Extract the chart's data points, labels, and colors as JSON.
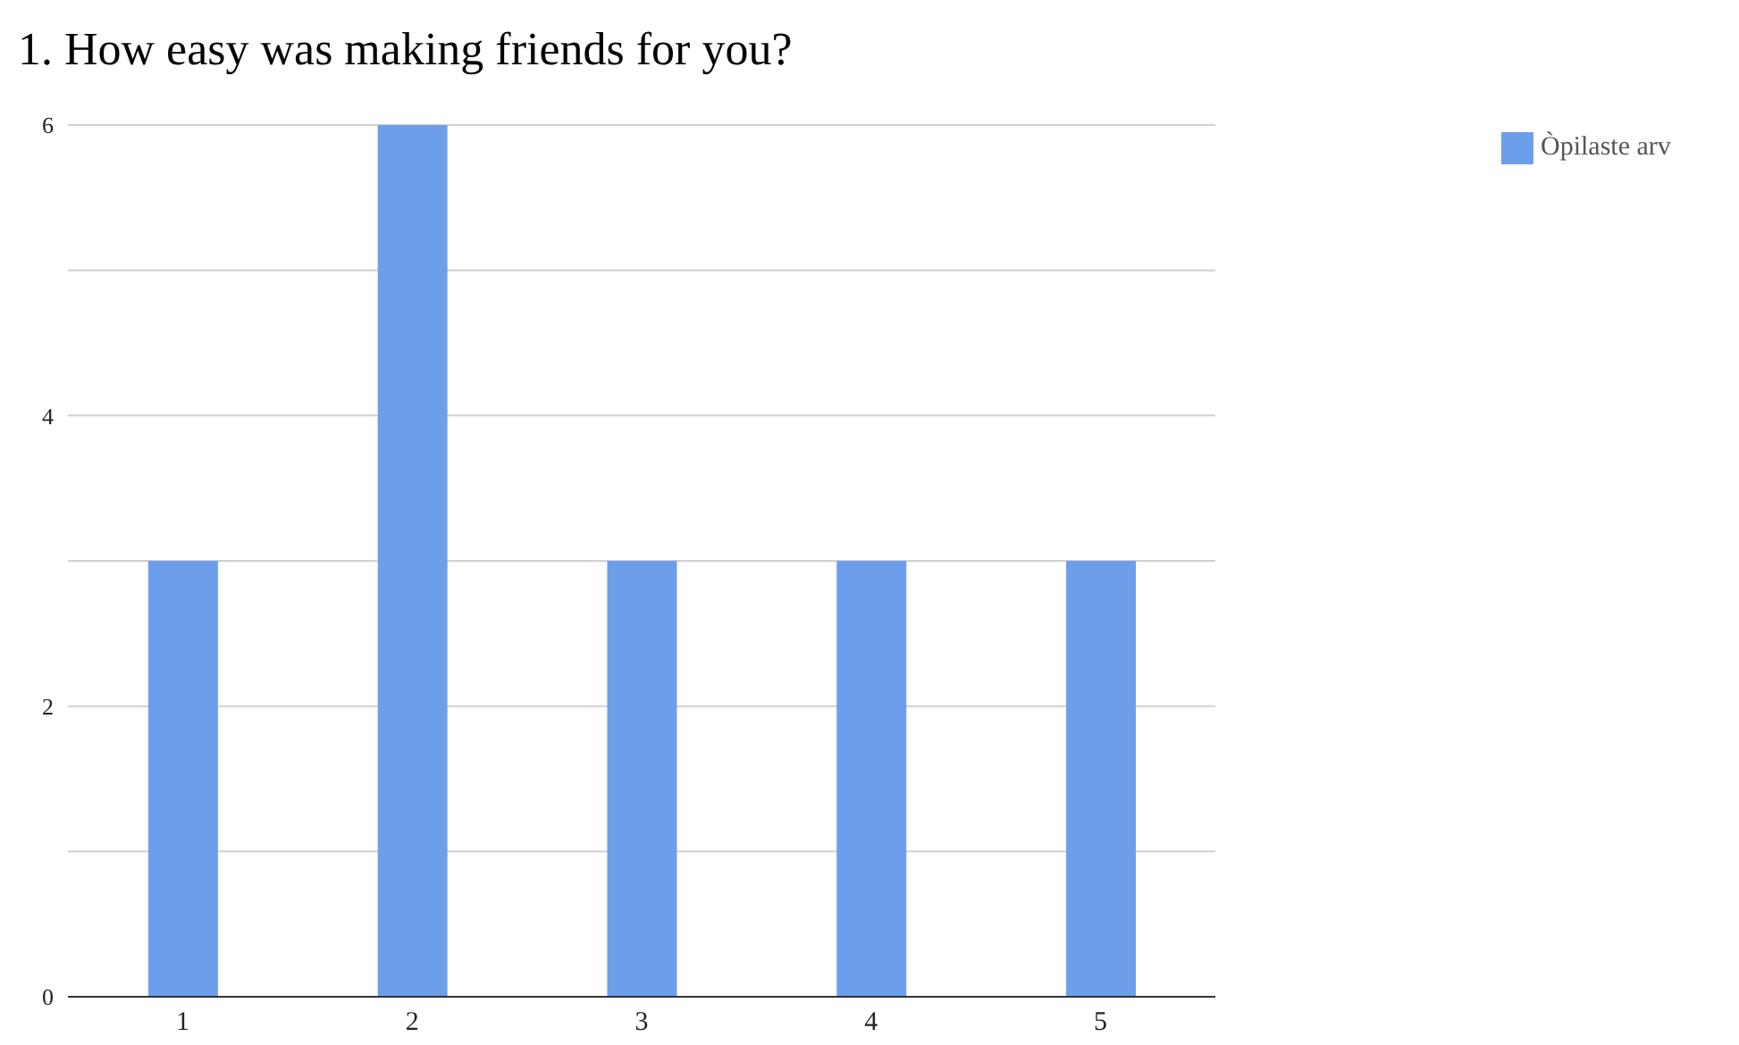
{
  "chart_data": {
    "type": "bar",
    "title": "1. How easy was making friends for you?",
    "categories": [
      "1",
      "2",
      "3",
      "4",
      "5"
    ],
    "series": [
      {
        "name": "Òpilaste arv",
        "color": "#6d9eeb",
        "values": [
          3,
          6,
          3,
          3,
          3
        ]
      }
    ],
    "ylim": [
      0,
      6
    ],
    "yticks": [
      0,
      {
        "value": 1,
        "label": null
      },
      2,
      {
        "value": 3,
        "label": null
      },
      4,
      {
        "value": 5,
        "label": null
      },
      6
    ],
    "grid": "y",
    "legend": "top right"
  }
}
